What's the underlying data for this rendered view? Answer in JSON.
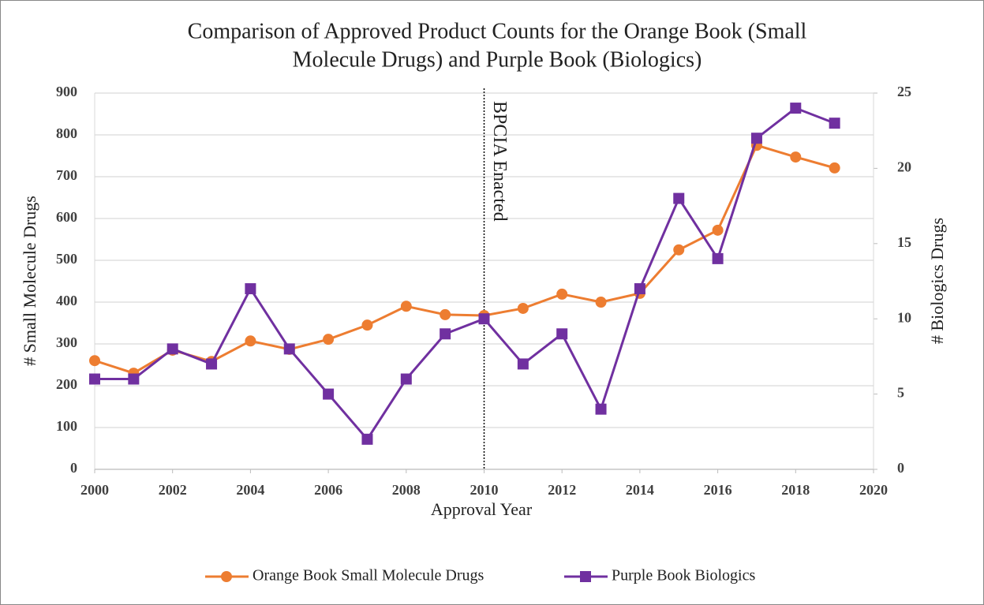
{
  "chart_data": {
    "type": "line",
    "title": [
      "Comparison of Approved Product Counts for the Orange Book (Small",
      "Molecule Drugs) and Purple Book (Biologics)"
    ],
    "xlabel": "Approval Year",
    "ylabel": "# Small Molecule Drugs",
    "y2label": "# Biologics Drugs",
    "x": [
      2000,
      2001,
      2002,
      2003,
      2004,
      2005,
      2006,
      2007,
      2008,
      2009,
      2010,
      2011,
      2012,
      2013,
      2014,
      2015,
      2016,
      2017,
      2018,
      2019
    ],
    "xlim": [
      2000,
      2020
    ],
    "xticks": [
      2000,
      2002,
      2004,
      2006,
      2008,
      2010,
      2012,
      2014,
      2016,
      2018,
      2020
    ],
    "ylim": [
      0,
      900
    ],
    "yticks": [
      0,
      100,
      200,
      300,
      400,
      500,
      600,
      700,
      800,
      900
    ],
    "y2lim": [
      0,
      25
    ],
    "y2ticks": [
      0,
      5,
      10,
      15,
      20,
      25
    ],
    "grid": true,
    "legend": "bottom",
    "series": [
      {
        "name": "Orange Book Small Molecule Drugs",
        "color": "#ed7d31",
        "marker": "circle",
        "values": [
          260,
          230,
          285,
          258,
          307,
          287,
          311,
          345,
          390,
          370,
          368,
          385,
          419,
          400,
          421,
          525,
          572,
          775,
          747,
          721
        ]
      },
      {
        "name": "Purple Book Biologics",
        "color": "#7030a0",
        "marker": "square",
        "axis": "y2",
        "values": [
          6,
          6,
          8,
          7,
          12,
          8,
          5,
          2,
          6,
          9,
          10,
          7,
          9,
          4,
          12,
          18,
          14,
          22,
          24,
          23
        ]
      }
    ],
    "annotation": {
      "text": "BPCIA Enacted",
      "x": 2010
    }
  }
}
